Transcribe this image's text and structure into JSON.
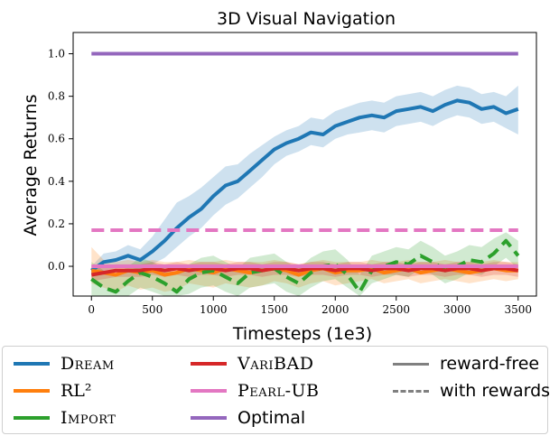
{
  "chart_data": {
    "type": "line",
    "title": "3D Visual Navigation",
    "xlabel": "Timesteps (1e3)",
    "ylabel": "Average Returns",
    "xlim": [
      -150,
      3650
    ],
    "ylim": [
      -0.14,
      1.1
    ],
    "xticks": [
      0,
      500,
      1000,
      1500,
      2000,
      2500,
      3000,
      3500
    ],
    "yticks": [
      "0.0",
      "0.2",
      "0.4",
      "0.6",
      "0.8",
      "1.0"
    ],
    "grid": false,
    "legend_position": "below",
    "x": [
      0,
      100,
      200,
      300,
      400,
      500,
      600,
      700,
      800,
      900,
      1000,
      1100,
      1200,
      1300,
      1400,
      1500,
      1600,
      1700,
      1800,
      1900,
      2000,
      2100,
      2200,
      2300,
      2400,
      2500,
      2600,
      2700,
      2800,
      2900,
      3000,
      3100,
      3200,
      3300,
      3400,
      3500
    ],
    "series": [
      {
        "name": "Dream",
        "color": "#1f77b4",
        "style": "solid",
        "values": [
          -0.02,
          0.02,
          0.03,
          0.05,
          0.03,
          0.07,
          0.12,
          0.18,
          0.23,
          0.27,
          0.33,
          0.38,
          0.4,
          0.45,
          0.5,
          0.55,
          0.58,
          0.6,
          0.63,
          0.62,
          0.66,
          0.68,
          0.7,
          0.71,
          0.7,
          0.73,
          0.74,
          0.75,
          0.73,
          0.76,
          0.78,
          0.77,
          0.74,
          0.75,
          0.72,
          0.74
        ],
        "lower": [
          -0.04,
          -0.02,
          -0.01,
          0.0,
          -0.02,
          0.01,
          0.04,
          0.09,
          0.14,
          0.18,
          0.24,
          0.29,
          0.32,
          0.37,
          0.42,
          0.48,
          0.52,
          0.54,
          0.57,
          0.56,
          0.6,
          0.62,
          0.63,
          0.64,
          0.63,
          0.66,
          0.67,
          0.68,
          0.66,
          0.69,
          0.71,
          0.7,
          0.67,
          0.68,
          0.65,
          0.62
        ],
        "upper": [
          0.0,
          0.06,
          0.07,
          0.1,
          0.08,
          0.14,
          0.22,
          0.3,
          0.33,
          0.37,
          0.42,
          0.47,
          0.48,
          0.53,
          0.57,
          0.61,
          0.64,
          0.66,
          0.7,
          0.69,
          0.73,
          0.75,
          0.77,
          0.78,
          0.77,
          0.8,
          0.81,
          0.82,
          0.8,
          0.83,
          0.85,
          0.84,
          0.81,
          0.82,
          0.8,
          0.85
        ]
      },
      {
        "name": "RL²",
        "color": "#ff7f0e",
        "style": "solid",
        "values": [
          -0.02,
          -0.03,
          -0.04,
          -0.02,
          -0.03,
          -0.02,
          -0.04,
          -0.03,
          -0.01,
          -0.02,
          -0.03,
          -0.01,
          -0.02,
          -0.03,
          -0.02,
          -0.01,
          -0.02,
          -0.04,
          -0.02,
          -0.01,
          -0.03,
          -0.02,
          -0.02,
          -0.01,
          -0.03,
          -0.02,
          -0.01,
          -0.03,
          -0.02,
          -0.01,
          -0.02,
          -0.03,
          -0.02,
          -0.01,
          -0.02,
          -0.02
        ],
        "lower": [
          -0.08,
          -0.1,
          -0.12,
          -0.09,
          -0.11,
          -0.1,
          -0.12,
          -0.11,
          -0.08,
          -0.09,
          -0.1,
          -0.08,
          -0.09,
          -0.1,
          -0.09,
          -0.07,
          -0.08,
          -0.1,
          -0.08,
          -0.07,
          -0.09,
          -0.08,
          -0.07,
          -0.06,
          -0.08,
          -0.07,
          -0.06,
          -0.08,
          -0.07,
          -0.06,
          -0.07,
          -0.08,
          -0.07,
          -0.06,
          -0.07,
          -0.06
        ],
        "upper": [
          0.09,
          0.03,
          0.02,
          0.03,
          0.02,
          0.03,
          0.02,
          0.02,
          0.03,
          0.02,
          0.02,
          0.03,
          0.02,
          0.02,
          0.02,
          0.03,
          0.02,
          0.01,
          0.02,
          0.03,
          0.02,
          0.02,
          0.02,
          0.03,
          0.02,
          0.02,
          0.03,
          0.02,
          0.02,
          0.03,
          0.02,
          0.02,
          0.02,
          0.03,
          0.02,
          0.02
        ]
      },
      {
        "name": "Import",
        "color": "#2ca02c",
        "style": "dashed",
        "values": [
          -0.06,
          -0.1,
          -0.12,
          -0.07,
          -0.03,
          -0.05,
          -0.08,
          -0.12,
          -0.06,
          -0.03,
          -0.02,
          -0.05,
          -0.08,
          -0.03,
          -0.02,
          -0.01,
          -0.05,
          -0.08,
          -0.03,
          0.0,
          0.01,
          -0.04,
          -0.12,
          -0.02,
          0.0,
          0.02,
          0.01,
          0.05,
          0.02,
          -0.02,
          0.0,
          0.03,
          0.02,
          0.06,
          0.12,
          0.05
        ],
        "lower": [
          -0.14,
          -0.14,
          -0.14,
          -0.14,
          -0.1,
          -0.12,
          -0.14,
          -0.14,
          -0.13,
          -0.1,
          -0.09,
          -0.12,
          -0.14,
          -0.1,
          -0.09,
          -0.08,
          -0.12,
          -0.14,
          -0.1,
          -0.07,
          -0.06,
          -0.1,
          -0.14,
          -0.08,
          -0.06,
          -0.04,
          -0.05,
          -0.01,
          -0.04,
          -0.08,
          -0.06,
          -0.03,
          -0.04,
          0.0,
          0.04,
          -0.01
        ],
        "upper": [
          0.02,
          -0.02,
          -0.04,
          0.0,
          0.04,
          0.02,
          -0.01,
          -0.04,
          0.01,
          0.04,
          0.05,
          0.02,
          -0.01,
          0.04,
          0.05,
          0.06,
          0.02,
          -0.01,
          0.04,
          0.07,
          0.08,
          0.03,
          -0.04,
          0.05,
          0.07,
          0.09,
          0.08,
          0.12,
          0.09,
          0.05,
          0.07,
          0.1,
          0.09,
          0.13,
          0.16,
          0.12
        ]
      },
      {
        "name": "VariBAD",
        "color": "#d62728",
        "style": "solid",
        "values": [
          -0.04,
          -0.03,
          -0.02,
          -0.02,
          -0.02,
          -0.01,
          -0.02,
          -0.01,
          -0.02,
          -0.01,
          -0.01,
          -0.02,
          -0.01,
          -0.01,
          -0.02,
          -0.01,
          -0.01,
          -0.02,
          -0.01,
          -0.01,
          -0.02,
          -0.01,
          -0.01,
          -0.02,
          -0.01,
          -0.01,
          -0.02,
          -0.01,
          -0.01,
          -0.02,
          -0.01,
          -0.01,
          -0.02,
          -0.01,
          -0.01,
          -0.02
        ],
        "lower": [
          -0.07,
          -0.06,
          -0.05,
          -0.05,
          -0.05,
          -0.04,
          -0.05,
          -0.04,
          -0.05,
          -0.04,
          -0.04,
          -0.05,
          -0.04,
          -0.04,
          -0.05,
          -0.04,
          -0.04,
          -0.05,
          -0.04,
          -0.04,
          -0.05,
          -0.04,
          -0.04,
          -0.05,
          -0.04,
          -0.04,
          -0.05,
          -0.04,
          -0.04,
          -0.05,
          -0.04,
          -0.04,
          -0.05,
          -0.04,
          -0.04,
          -0.05
        ],
        "upper": [
          -0.01,
          0.0,
          0.01,
          0.01,
          0.01,
          0.02,
          0.01,
          0.02,
          0.01,
          0.02,
          0.02,
          0.01,
          0.02,
          0.02,
          0.01,
          0.02,
          0.02,
          0.01,
          0.02,
          0.02,
          0.01,
          0.02,
          0.02,
          0.01,
          0.02,
          0.02,
          0.01,
          0.02,
          0.02,
          0.01,
          0.02,
          0.02,
          0.01,
          0.02,
          0.02,
          0.01
        ]
      },
      {
        "name": "Pearl-UB",
        "color": "#e377c2",
        "style": "dashed",
        "values": [
          0.17,
          0.17,
          0.17,
          0.17,
          0.17,
          0.17,
          0.17,
          0.17,
          0.17,
          0.17,
          0.17,
          0.17,
          0.17,
          0.17,
          0.17,
          0.17,
          0.17,
          0.17,
          0.17,
          0.17,
          0.17,
          0.17,
          0.17,
          0.17,
          0.17,
          0.17,
          0.17,
          0.17,
          0.17,
          0.17,
          0.17,
          0.17,
          0.17,
          0.17,
          0.17,
          0.17
        ]
      },
      {
        "name": "Pearl-UB",
        "color": "#e377c2",
        "style": "solid",
        "values": [
          0.0,
          0.0,
          0.0,
          0.0,
          0.0,
          0.0,
          0.0,
          0.0,
          0.0,
          0.0,
          0.0,
          0.0,
          0.0,
          0.0,
          0.0,
          0.0,
          0.0,
          0.0,
          0.0,
          0.0,
          0.0,
          0.0,
          0.0,
          0.0,
          0.0,
          0.0,
          0.0,
          0.0,
          0.0,
          0.0,
          0.0,
          0.0,
          0.0,
          0.0,
          0.0,
          0.0
        ]
      },
      {
        "name": "Optimal",
        "color": "#9467bd",
        "style": "solid",
        "values": [
          1.0,
          1.0,
          1.0,
          1.0,
          1.0,
          1.0,
          1.0,
          1.0,
          1.0,
          1.0,
          1.0,
          1.0,
          1.0,
          1.0,
          1.0,
          1.0,
          1.0,
          1.0,
          1.0,
          1.0,
          1.0,
          1.0,
          1.0,
          1.0,
          1.0,
          1.0,
          1.0,
          1.0,
          1.0,
          1.0,
          1.0,
          1.0,
          1.0,
          1.0,
          1.0,
          1.0
        ]
      }
    ]
  },
  "legend": {
    "items": [
      {
        "label": "Dream",
        "color": "#1f77b4",
        "style": "solid"
      },
      {
        "label": "RL²",
        "color": "#ff7f0e",
        "style": "solid"
      },
      {
        "label": "Import",
        "color": "#2ca02c",
        "style": "solid"
      },
      {
        "label": "VariBAD",
        "color": "#d62728",
        "style": "solid"
      },
      {
        "label": "Pearl-UB",
        "color": "#e377c2",
        "style": "solid"
      },
      {
        "label": "Optimal",
        "color": "#9467bd",
        "style": "solid"
      },
      {
        "label": "reward-free",
        "color": "#808080",
        "style": "solid"
      },
      {
        "label": "with rewards",
        "color": "#808080",
        "style": "dashed"
      }
    ]
  }
}
